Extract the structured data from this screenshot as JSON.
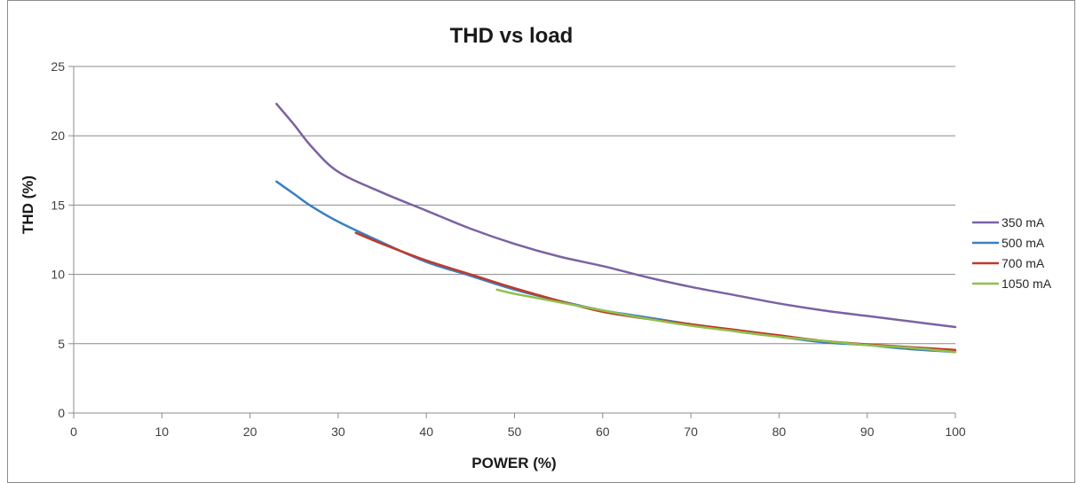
{
  "chart_data": {
    "type": "line",
    "title": "THD vs load",
    "xlabel": "POWER (%)",
    "ylabel": "THD (%)",
    "xlim": [
      0,
      100
    ],
    "ylim": [
      0,
      25
    ],
    "x_ticks": [
      0,
      10,
      20,
      30,
      40,
      50,
      60,
      70,
      80,
      90,
      100
    ],
    "y_ticks": [
      0,
      5,
      10,
      15,
      20,
      25
    ],
    "grid": "horizontal",
    "legend_position": "right",
    "series": [
      {
        "name": "350 mA",
        "color": "#7b62a3",
        "x": [
          23,
          25,
          27,
          30,
          35,
          40,
          45,
          50,
          55,
          60,
          65,
          70,
          75,
          80,
          85,
          90,
          95,
          100
        ],
        "y": [
          22.3,
          20.8,
          19.2,
          17.4,
          15.9,
          14.6,
          13.3,
          12.2,
          11.3,
          10.6,
          9.8,
          9.1,
          8.5,
          7.9,
          7.4,
          7.0,
          6.6,
          6.2
        ]
      },
      {
        "name": "500 mA",
        "color": "#3a7fc4",
        "x": [
          23,
          25,
          27,
          30,
          35,
          40,
          45,
          50,
          55,
          60,
          65,
          70,
          75,
          80,
          85,
          90,
          95,
          100
        ],
        "y": [
          16.7,
          15.8,
          14.9,
          13.8,
          12.3,
          10.9,
          9.9,
          8.9,
          8.1,
          7.4,
          6.9,
          6.4,
          5.9,
          5.5,
          5.1,
          4.9,
          4.6,
          4.4
        ]
      },
      {
        "name": "700 mA",
        "color": "#c0392b",
        "x": [
          32,
          35,
          40,
          45,
          50,
          55,
          60,
          65,
          70,
          75,
          80,
          85,
          90,
          95,
          100
        ],
        "y": [
          13.0,
          12.2,
          11.0,
          10.0,
          9.0,
          8.1,
          7.3,
          6.8,
          6.4,
          6.0,
          5.6,
          5.2,
          4.95,
          4.75,
          4.55
        ]
      },
      {
        "name": "1050 mA",
        "color": "#8fc14a",
        "x": [
          48,
          50,
          55,
          60,
          65,
          70,
          75,
          80,
          85,
          90,
          95,
          100
        ],
        "y": [
          8.9,
          8.6,
          8.0,
          7.4,
          6.8,
          6.3,
          5.9,
          5.5,
          5.2,
          4.9,
          4.7,
          4.4
        ]
      }
    ]
  }
}
